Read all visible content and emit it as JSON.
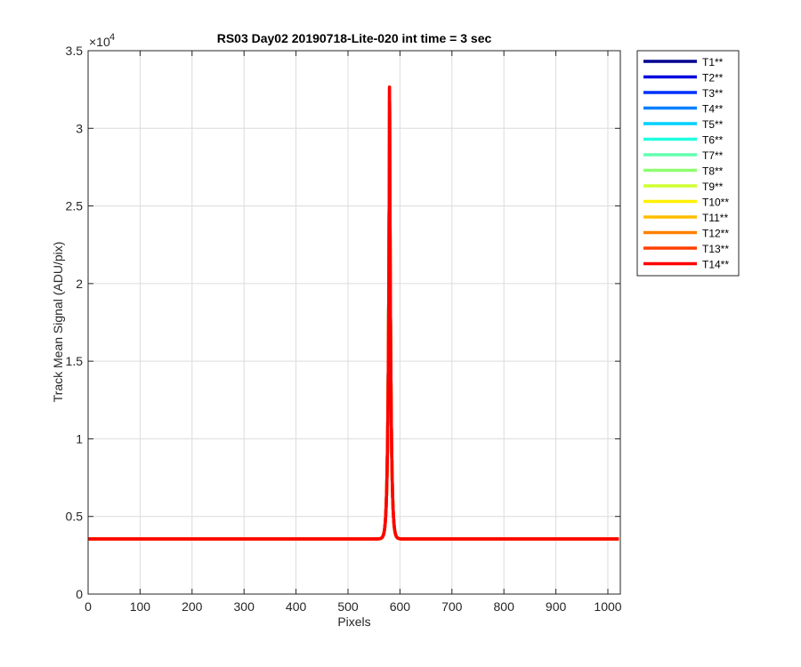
{
  "chart_data": {
    "type": "line",
    "title": "RS03 Day02 20190718-Lite-020 int time = 3 sec",
    "xlabel": "Pixels",
    "ylabel": "Track Mean Signal (ADU/pix)",
    "xlim": [
      0,
      1024
    ],
    "ylim": [
      0,
      35000
    ],
    "xticks": [
      0,
      100,
      200,
      300,
      400,
      500,
      600,
      700,
      800,
      900,
      1000
    ],
    "yticks": [
      0,
      5000,
      10000,
      15000,
      20000,
      25000,
      30000,
      35000
    ],
    "ytick_labels": [
      "0",
      "0.5",
      "1",
      "1.5",
      "2",
      "2.5",
      "3",
      "3.5"
    ],
    "y_exponent_base": "×10",
    "y_exponent_power": "4",
    "grid": true,
    "legend_position": "outside-top-right",
    "profile": {
      "baseline": 3550,
      "peak_x": 580,
      "peak_value": 32300,
      "peak_halfwidth": 2.5,
      "shoulder_amplitude": 350,
      "shoulder_halfwidth": 3.5
    },
    "series": [
      {
        "name": "T1**",
        "color": "#00008f"
      },
      {
        "name": "T2**",
        "color": "#0000df"
      },
      {
        "name": "T3**",
        "color": "#0030ff"
      },
      {
        "name": "T4**",
        "color": "#0080ff"
      },
      {
        "name": "T5**",
        "color": "#00cfff"
      },
      {
        "name": "T6**",
        "color": "#20ffdf"
      },
      {
        "name": "T7**",
        "color": "#60ffaf"
      },
      {
        "name": "T8**",
        "color": "#8fff70"
      },
      {
        "name": "T9**",
        "color": "#cfff30"
      },
      {
        "name": "T10**",
        "color": "#ffef00"
      },
      {
        "name": "T11**",
        "color": "#ffbf00"
      },
      {
        "name": "T12**",
        "color": "#ff8000"
      },
      {
        "name": "T13**",
        "color": "#ff4000"
      },
      {
        "name": "T14**",
        "color": "#ff0000"
      }
    ]
  }
}
